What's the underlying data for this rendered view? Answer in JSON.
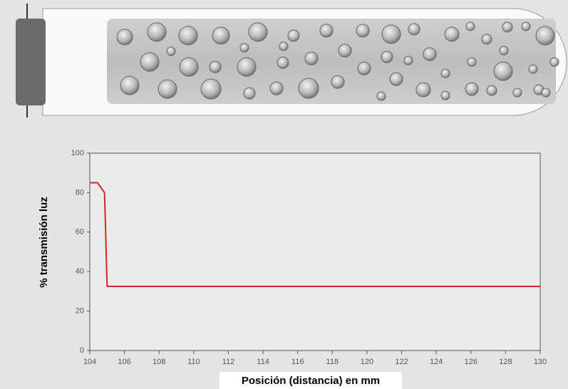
{
  "chart_data": {
    "type": "line",
    "xlabel": "Posición (distancia) en mm",
    "ylabel": "% transmisión luz",
    "series": [
      {
        "color": "#d9262a",
        "x": [
          104,
          104.45,
          104.85,
          104.9,
          104.95,
          105,
          130
        ],
        "values": [
          85,
          85,
          80,
          65,
          48,
          32.5,
          32.5
        ]
      }
    ],
    "xlim": [
      104,
      130
    ],
    "xticks": [
      104,
      106,
      108,
      110,
      112,
      114,
      116,
      118,
      120,
      122,
      124,
      126,
      128,
      130
    ],
    "ylim": [
      0,
      100
    ],
    "yticks": [
      0,
      20,
      40,
      60,
      80,
      100
    ]
  }
}
